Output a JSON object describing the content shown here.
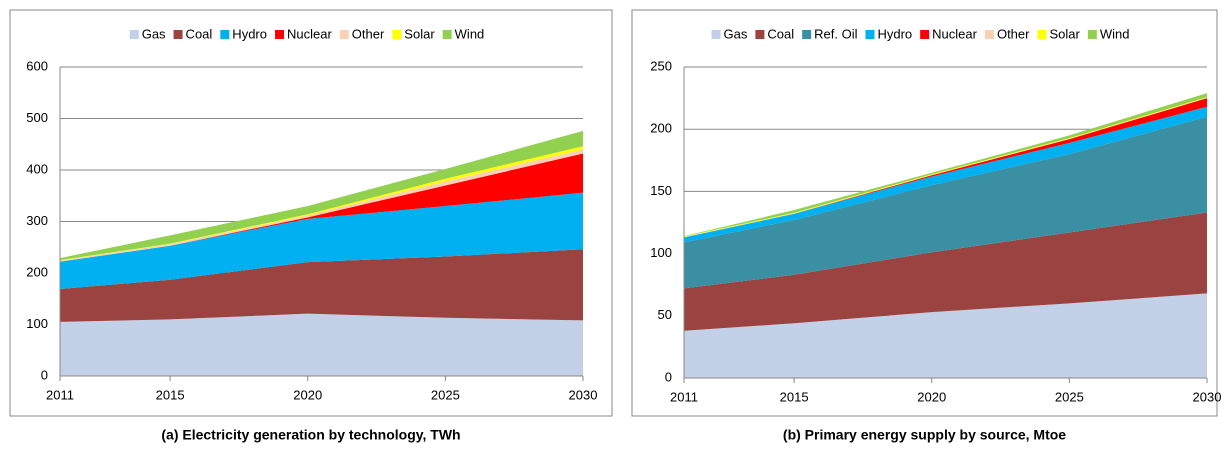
{
  "chart_data": [
    {
      "type": "stacked-area",
      "title": "(a) Electricity generation by technology, TWh",
      "x": [
        2011,
        2015,
        2020,
        2025,
        2030
      ],
      "xlim": [
        2011,
        2030
      ],
      "xticks": [
        2011,
        2015,
        2020,
        2025,
        2030
      ],
      "ylim": [
        0,
        600
      ],
      "yticks": [
        0,
        100,
        200,
        300,
        400,
        500,
        600
      ],
      "grid": true,
      "legend": "top",
      "series": [
        {
          "name": "Gas",
          "color": "#c2d1e7",
          "values": [
            105,
            110,
            121,
            113,
            108
          ]
        },
        {
          "name": "Coal",
          "color": "#9b4340",
          "values": [
            64,
            77,
            100,
            119,
            138
          ]
        },
        {
          "name": "Hydro",
          "color": "#00b0f0",
          "values": [
            53,
            66,
            84,
            98,
            110
          ]
        },
        {
          "name": "Nuclear",
          "color": "#ff0000",
          "values": [
            0,
            0,
            3,
            40,
            76
          ]
        },
        {
          "name": "Other",
          "color": "#fbd1b5",
          "values": [
            2,
            3,
            4,
            8,
            8
          ]
        },
        {
          "name": "Solar",
          "color": "#ffff00",
          "values": [
            1,
            1,
            2,
            5,
            6
          ]
        },
        {
          "name": "Wind",
          "color": "#92d050",
          "values": [
            4,
            16,
            16,
            19,
            30
          ]
        }
      ]
    },
    {
      "type": "stacked-area",
      "title": "(b) Primary energy supply by source, Mtoe",
      "x": [
        2011,
        2015,
        2020,
        2025,
        2030
      ],
      "xlim": [
        2011,
        2030
      ],
      "xticks": [
        2011,
        2015,
        2020,
        2025,
        2030
      ],
      "ylim": [
        0,
        250
      ],
      "yticks": [
        0,
        50,
        100,
        150,
        200,
        250
      ],
      "grid": true,
      "legend": "top",
      "series": [
        {
          "name": "Gas",
          "color": "#c2d1e7",
          "values": [
            38,
            44,
            53,
            60,
            68
          ]
        },
        {
          "name": "Coal",
          "color": "#9b4340",
          "values": [
            34,
            39,
            48,
            57,
            65
          ]
        },
        {
          "name": "Ref. Oil",
          "color": "#3a8fa3",
          "values": [
            37,
            44,
            54,
            63,
            77
          ]
        },
        {
          "name": "Hydro",
          "color": "#00b0f0",
          "values": [
            4,
            5,
            7,
            9,
            8
          ]
        },
        {
          "name": "Nuclear",
          "color": "#ff0000",
          "values": [
            0,
            0,
            1,
            3,
            7
          ]
        },
        {
          "name": "Other",
          "color": "#fbd1b5",
          "values": [
            0.3,
            0.3,
            0.3,
            0.3,
            0.3
          ]
        },
        {
          "name": "Solar",
          "color": "#ffff00",
          "values": [
            0.5,
            0.5,
            0.5,
            0.5,
            0.5
          ]
        },
        {
          "name": "Wind",
          "color": "#92d050",
          "values": [
            0.2,
            2.2,
            1.2,
            2.2,
            3.2
          ]
        }
      ]
    }
  ]
}
